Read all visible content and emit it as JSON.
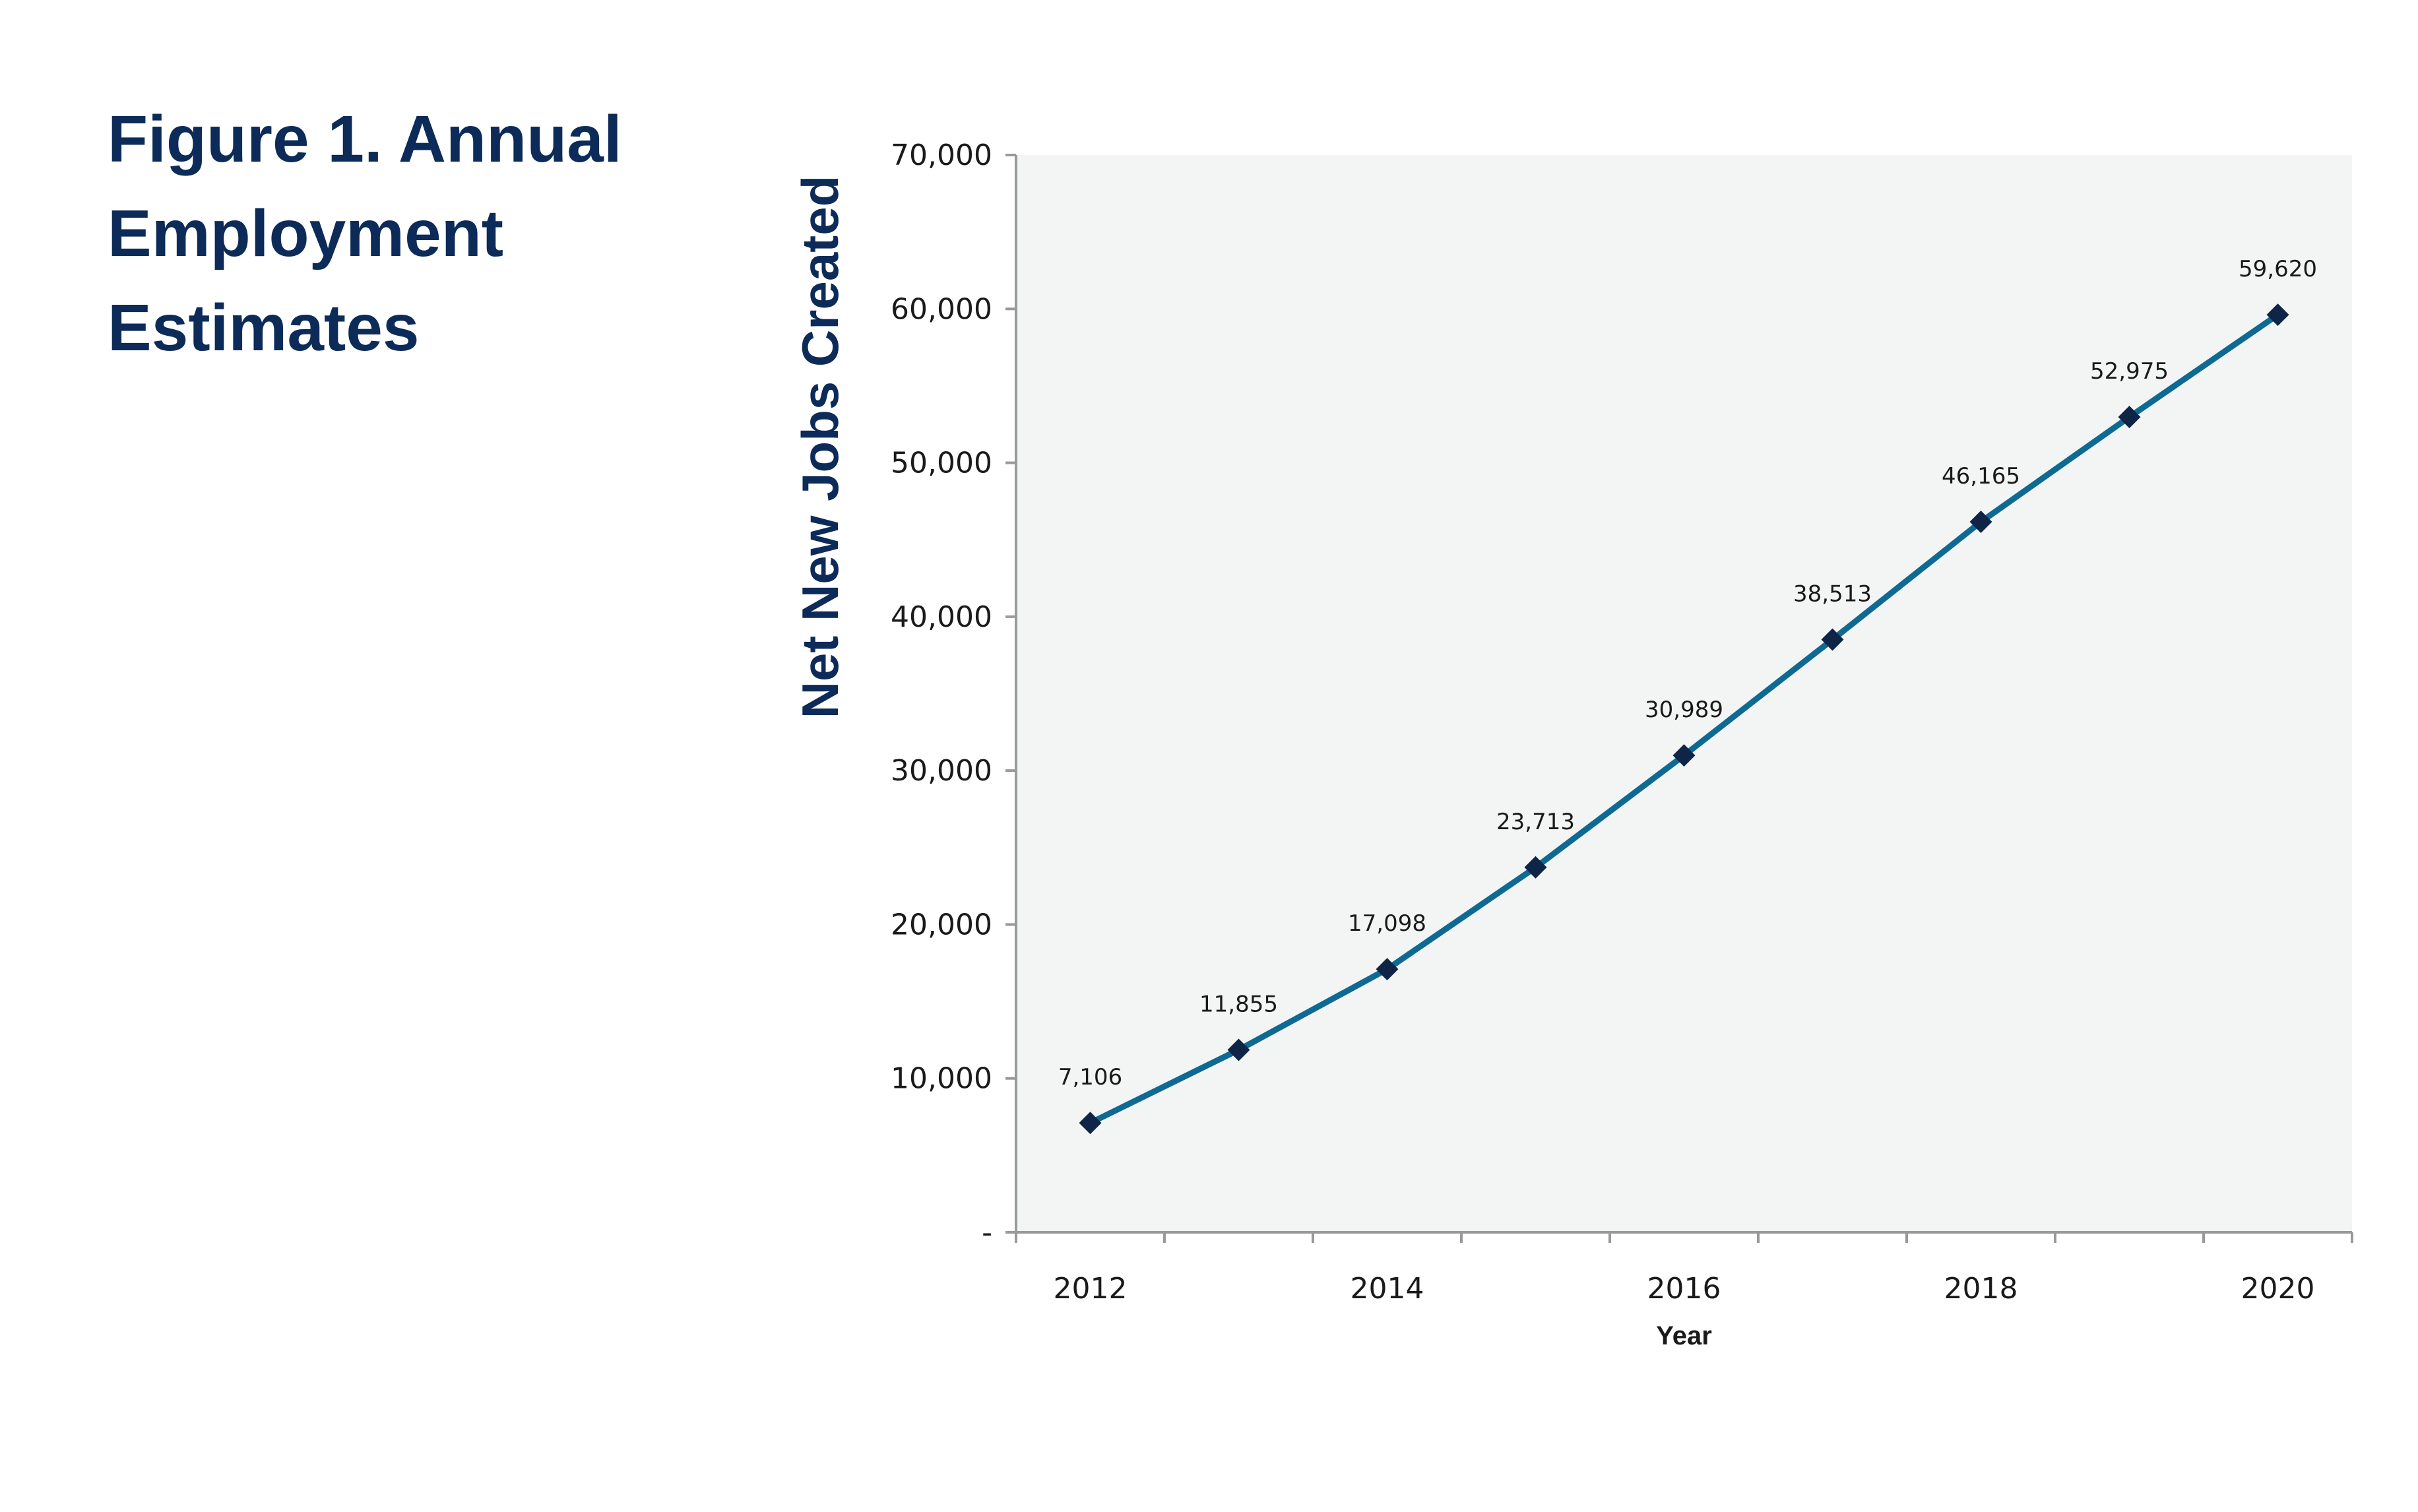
{
  "figure": {
    "title": "Figure 1. Annual Employment Estimates"
  },
  "colors": {
    "title": "#0d2b59",
    "line": "#0e6a93",
    "marker": "#0e2547",
    "plot_background": "#f3f5f5",
    "axis": "#999999"
  },
  "chart_data": {
    "type": "line",
    "title": "Figure 1. Annual Employment Estimates",
    "xlabel": "Year",
    "ylabel": "Net New Jobs Created",
    "x": [
      2012,
      2013,
      2014,
      2015,
      2016,
      2017,
      2018,
      2019,
      2020
    ],
    "x_ticks": [
      "2012",
      "2014",
      "2016",
      "2018",
      "2020"
    ],
    "y_ticks": [
      "-",
      "10,000",
      "20,000",
      "30,000",
      "40,000",
      "50,000",
      "60,000",
      "70,000"
    ],
    "ylim": [
      0,
      70000
    ],
    "grid": false,
    "marker": "diamond",
    "series": [
      {
        "values": [
          7106,
          11855,
          17098,
          23713,
          30989,
          38513,
          46165,
          52975,
          59620
        ],
        "labels": [
          "7,106",
          "11,855",
          "17,098",
          "23,713",
          "30,989",
          "38,513",
          "46,165",
          "52,975",
          "59,620"
        ]
      }
    ]
  }
}
